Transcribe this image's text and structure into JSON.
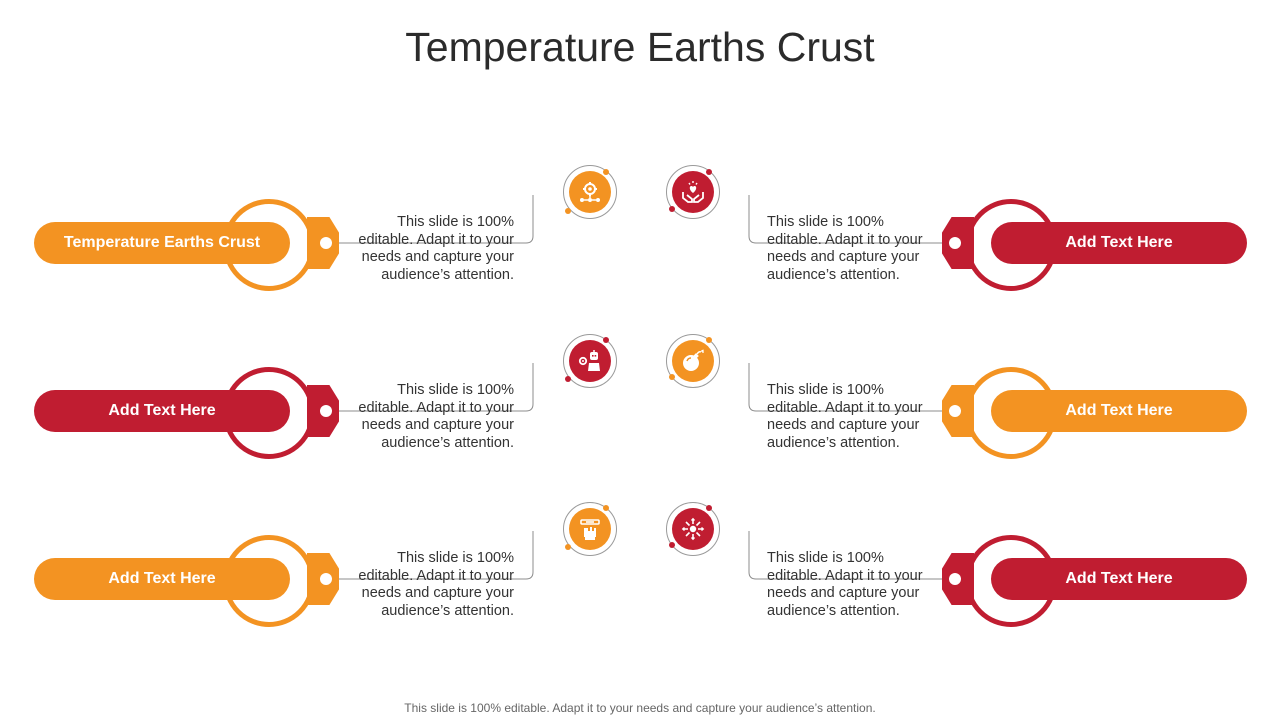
{
  "title": "Temperature Earths Crust",
  "footer": "This slide is 100% editable. Adapt it to your needs and capture your audience’s attention.",
  "colors": {
    "orange": "#F39322",
    "red": "#C01D31",
    "line": "#8c8c8c"
  },
  "items": [
    {
      "label": "Temperature Earths Crust",
      "desc": "This slide is 100% editable. Adapt it to your needs and capture your audience’s attention.",
      "color": "#F39322",
      "icon": "gear-network-icon"
    },
    {
      "label": "Add Text Here",
      "desc": "This slide is 100% editable. Adapt it to your needs and capture your audience’s attention.",
      "color": "#C01D31",
      "icon": "heart-in-hands-icon"
    },
    {
      "label": "Add Text Here",
      "desc": "This slide is 100% editable. Adapt it to your needs and capture your audience’s attention.",
      "color": "#C01D31",
      "icon": "engineer-robot-icon"
    },
    {
      "label": "Add Text Here",
      "desc": "This slide is 100% editable. Adapt it to your needs and capture your audience’s attention.",
      "color": "#F39322",
      "icon": "bomb-icon"
    },
    {
      "label": "Add Text Here",
      "desc": "This slide is 100% editable. Adapt it to your needs and capture your audience’s attention.",
      "color": "#F39322",
      "icon": "hand-holding-bar-icon"
    },
    {
      "label": "Add Text Here",
      "desc": "This slide is 100% editable. Adapt it to your needs and capture your audience’s attention.",
      "color": "#C01D31",
      "icon": "distribution-arrows-icon"
    }
  ]
}
